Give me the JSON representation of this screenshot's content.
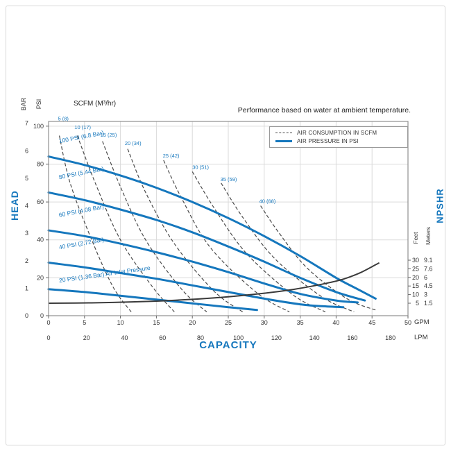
{
  "title": "Performance based on water at ambient temperature.",
  "legend": {
    "air_consumption": "AIR CONSUMPTION IN SCFM",
    "air_pressure": "AIR PRESSURE IN PSI"
  },
  "axis_titles": {
    "head": "HEAD",
    "capacity": "CAPACITY",
    "npshr": "NPSHR",
    "bar": "BAR",
    "psi": "PSI",
    "feet": "Feet",
    "meters": "Meters",
    "gpm": "GPM",
    "lpm": "LPM",
    "scfm_header": "SCFM (M³/hr)"
  },
  "colors": {
    "blue": "#1577bd",
    "dashed": "#4a4a4a",
    "npshr_curve": "#3a3a3a",
    "grid": "#dadada",
    "axis_text": "#333333",
    "border": "#8f8f8f"
  },
  "chart_data": {
    "type": "line",
    "x_axes": {
      "gpm": {
        "ticks": [
          0,
          5,
          10,
          15,
          20,
          25,
          30,
          35,
          40,
          45,
          50
        ],
        "range": [
          0,
          50
        ]
      },
      "lpm": {
        "ticks": [
          0,
          20,
          40,
          60,
          80,
          100,
          120,
          140,
          160,
          180
        ],
        "range": [
          0,
          189.3
        ]
      }
    },
    "y_axes": {
      "psi": {
        "ticks": [
          0,
          20,
          40,
          60,
          80,
          100
        ],
        "range": [
          0,
          102.5
        ]
      },
      "bar": {
        "ticks": [
          0,
          1,
          2,
          3,
          4,
          5,
          6,
          7
        ]
      },
      "npshr_feet": {
        "ticks": [
          30,
          25,
          20,
          15,
          10,
          5
        ],
        "range": [
          5,
          30
        ]
      },
      "npshr_meters": {
        "ticks": [
          "9.1",
          "7.6",
          "6",
          "4.5",
          "3",
          "1.5"
        ]
      }
    },
    "pressure_curves": [
      {
        "label": "100 PSI (6.8 Bar)",
        "angle": -11,
        "label_gpm": 1.5,
        "label_psi": 91,
        "points": [
          [
            0,
            84
          ],
          [
            5,
            79.5
          ],
          [
            10,
            74
          ],
          [
            15,
            67.5
          ],
          [
            20,
            60
          ],
          [
            25,
            51.5
          ],
          [
            30,
            42
          ],
          [
            35,
            31.5
          ],
          [
            40,
            20
          ],
          [
            43,
            14
          ],
          [
            45.5,
            9
          ]
        ]
      },
      {
        "label": "80 PSI (5.44 Bar)",
        "angle": -11,
        "label_gpm": 1.5,
        "label_psi": 72,
        "points": [
          [
            0,
            65
          ],
          [
            5,
            61
          ],
          [
            10,
            56
          ],
          [
            15,
            50.5
          ],
          [
            20,
            44
          ],
          [
            25,
            36.5
          ],
          [
            30,
            28.5
          ],
          [
            35,
            20
          ],
          [
            40,
            12.5
          ],
          [
            44,
            8
          ]
        ]
      },
      {
        "label": "60 PSI (4.08 Bar)",
        "angle": -11,
        "label_gpm": 1.5,
        "label_psi": 52,
        "points": [
          [
            0,
            45
          ],
          [
            5,
            42
          ],
          [
            10,
            38
          ],
          [
            15,
            33.5
          ],
          [
            20,
            28.5
          ],
          [
            25,
            23
          ],
          [
            30,
            17
          ],
          [
            35,
            11.5
          ],
          [
            40,
            8
          ],
          [
            43,
            7
          ]
        ]
      },
      {
        "label": "40 PSI (2.72 Bar)",
        "angle": -10,
        "label_gpm": 1.5,
        "label_psi": 35,
        "points": [
          [
            0,
            28
          ],
          [
            5,
            25.5
          ],
          [
            10,
            22.5
          ],
          [
            15,
            19.5
          ],
          [
            20,
            16
          ],
          [
            25,
            12.5
          ],
          [
            30,
            9
          ],
          [
            35,
            6
          ],
          [
            38,
            5
          ],
          [
            41,
            4.5
          ]
        ]
      },
      {
        "label": "20 PSI (1.36 Bar) Air Inlet Pressure",
        "angle": -8,
        "label_gpm": 1.5,
        "label_psi": 17.5,
        "points": [
          [
            0,
            14
          ],
          [
            5,
            12.5
          ],
          [
            10,
            10.5
          ],
          [
            15,
            8.5
          ],
          [
            20,
            6.5
          ],
          [
            25,
            4.5
          ],
          [
            29,
            3
          ]
        ]
      }
    ],
    "air_consumption_curves": [
      {
        "label": "5 (8)",
        "label_gpm": 1.3,
        "label_psi": 103,
        "points": [
          [
            1.5,
            95
          ],
          [
            3,
            70
          ],
          [
            6,
            40
          ],
          [
            9,
            15
          ],
          [
            11.5,
            2
          ]
        ]
      },
      {
        "label": "10 (17)",
        "label_gpm": 3.6,
        "label_psi": 98.5,
        "points": [
          [
            4,
            95
          ],
          [
            6.5,
            70
          ],
          [
            10,
            40
          ],
          [
            14.5,
            15
          ],
          [
            17.5,
            2
          ]
        ]
      },
      {
        "label": "15 (25)",
        "label_gpm": 7.2,
        "label_psi": 94.5,
        "points": [
          [
            7.5,
            92
          ],
          [
            10,
            68
          ],
          [
            13.5,
            40
          ],
          [
            18.5,
            14
          ],
          [
            22,
            2
          ]
        ]
      },
      {
        "label": "20 (34)",
        "label_gpm": 10.6,
        "label_psi": 90,
        "points": [
          [
            11,
            88
          ],
          [
            13.5,
            65
          ],
          [
            17.5,
            38
          ],
          [
            23,
            13
          ],
          [
            27,
            2
          ]
        ]
      },
      {
        "label": "25 (42)",
        "label_gpm": 15.9,
        "label_psi": 83.5,
        "points": [
          [
            16,
            82
          ],
          [
            18.5,
            62
          ],
          [
            22.5,
            36
          ],
          [
            29,
            12
          ],
          [
            33.5,
            2
          ]
        ]
      },
      {
        "label": "30 (51)",
        "label_gpm": 20,
        "label_psi": 77.5,
        "points": [
          [
            20,
            76
          ],
          [
            23,
            57
          ],
          [
            27.5,
            33
          ],
          [
            34,
            11
          ],
          [
            38.5,
            2
          ]
        ]
      },
      {
        "label": "35 (59)",
        "label_gpm": 23.9,
        "label_psi": 71,
        "points": [
          [
            24,
            70
          ],
          [
            27,
            52
          ],
          [
            31.5,
            30
          ],
          [
            38,
            10
          ],
          [
            42.5,
            2
          ]
        ]
      },
      {
        "label": "40 (68)",
        "label_gpm": 29.3,
        "label_psi": 59.5,
        "points": [
          [
            29.5,
            58
          ],
          [
            32,
            44
          ],
          [
            36,
            25
          ],
          [
            41.5,
            9
          ],
          [
            45.5,
            3
          ]
        ]
      }
    ],
    "npshr_curve": {
      "units": "gpm_vs_feet",
      "points": [
        [
          0,
          5
        ],
        [
          6,
          5.2
        ],
        [
          12,
          5.8
        ],
        [
          18,
          6.8
        ],
        [
          24,
          8.4
        ],
        [
          30,
          10.8
        ],
        [
          34,
          13
        ],
        [
          38,
          16
        ],
        [
          41,
          19
        ],
        [
          43.5,
          23
        ],
        [
          46,
          28.5
        ]
      ]
    }
  }
}
